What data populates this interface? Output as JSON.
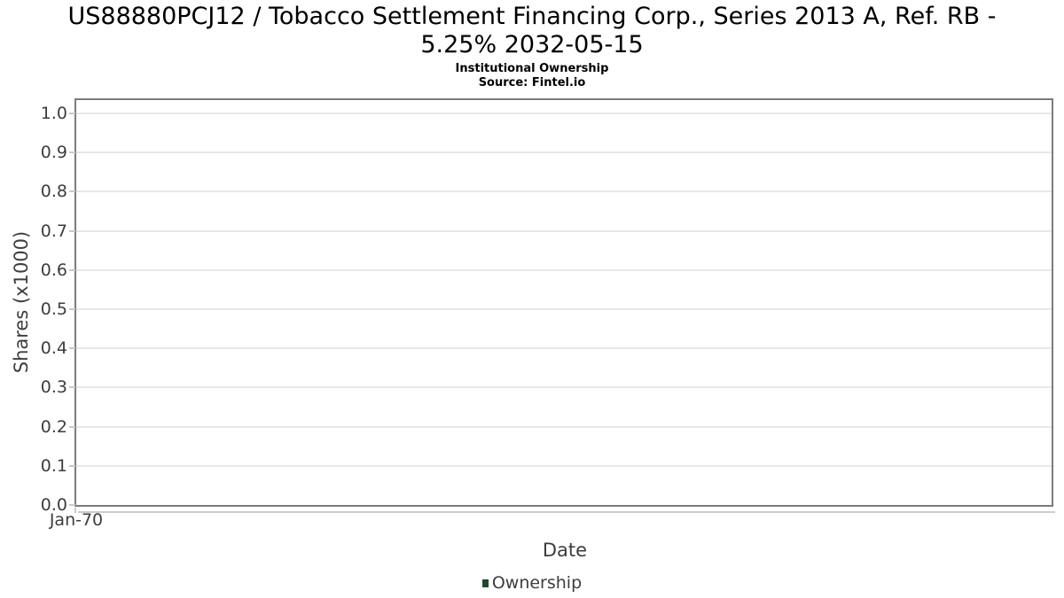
{
  "header": {
    "title_line1": "US88880PCJ12 / Tobacco Settlement Financing Corp., Series 2013 A, Ref. RB -",
    "title_line2": "5.25% 2032-05-15",
    "subtitle": "Institutional Ownership",
    "source": "Source: Fintel.io"
  },
  "chart_data": {
    "type": "line",
    "title": "US88880PCJ12 / Tobacco Settlement Financing Corp., Series 2013 A, Ref. RB - 5.25% 2032-05-15",
    "subtitle": "Institutional Ownership",
    "source": "Source: Fintel.io",
    "xlabel": "Date",
    "ylabel": "Shares (x1000)",
    "x_tick_labels": [
      "Jan-70"
    ],
    "y_tick_labels": [
      "0.0",
      "0.1",
      "0.2",
      "0.3",
      "0.4",
      "0.5",
      "0.6",
      "0.7",
      "0.8",
      "0.9",
      "1.0"
    ],
    "y_tick_values": [
      0.0,
      0.1,
      0.2,
      0.3,
      0.4,
      0.5,
      0.6,
      0.7,
      0.8,
      0.9,
      1.0
    ],
    "ylim": [
      0.0,
      1.035
    ],
    "grid": true,
    "legend_position": "bottom",
    "series": [
      {
        "name": "Ownership",
        "color": "#1d4a2b",
        "x": [],
        "y": []
      }
    ]
  },
  "legend": {
    "label": "Ownership",
    "swatch_color": "#1d4a2b"
  },
  "colors": {
    "grid": "#e8e8e8",
    "plot_border": "#7b7b7b",
    "tick": "#c9c9c9",
    "axis_text": "#3d3d3d",
    "title_text": "#000000",
    "shadow": "#cccccc",
    "legend_swatch": "#1d4a2b"
  }
}
